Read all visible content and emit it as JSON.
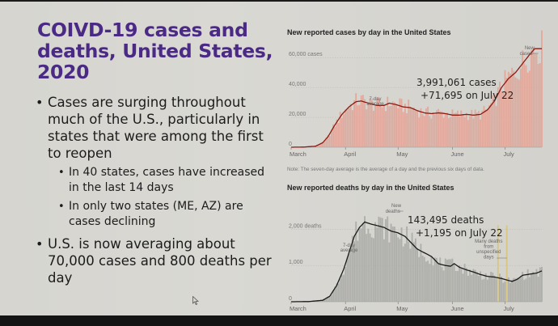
{
  "slide": {
    "title": "COIVD-19 cases and deaths, United States, 2020",
    "bullets": [
      {
        "level": 1,
        "text": "Cases are surging throughout much of the U.S., particularly in states that were among the first to reopen"
      },
      {
        "level": 2,
        "text": "In 40 states, cases have increased in the last 14 days"
      },
      {
        "level": 2,
        "text": "In only two states (ME, AZ) are cases declining"
      },
      {
        "level": 1,
        "text": "U.S. is now averaging about 70,000 cases and 800 deaths per day"
      }
    ],
    "cursor_icon": "mouse-pointer-icon",
    "title_color": "#4b2a86"
  },
  "chart_data": [
    {
      "type": "bar",
      "title": "New reported cases by day in the United States",
      "note": "Note: The seven-day average is the average of a day and the previous six days of data.",
      "xlabel": "",
      "ylabel": "",
      "x_range": [
        "March 1",
        "July 22"
      ],
      "ylim": [
        0,
        65000
      ],
      "yticks": [
        0,
        20000,
        40000,
        60000
      ],
      "ytick_labels": [
        "0",
        "20,000",
        "40,000",
        "60,000 cases"
      ],
      "month_labels": [
        "March",
        "April",
        "May",
        "June",
        "July"
      ],
      "month_start_day_index": [
        0,
        31,
        61,
        92,
        122
      ],
      "grid": true,
      "bar_color": "#e2a497",
      "line_color": "#8b1a10",
      "annotations": {
        "series_label": "New cases",
        "average_label": "7-day average",
        "total": "3,991,061 cases",
        "latest": "+71,695 on July 22"
      },
      "series": [
        {
          "name": "7-day average",
          "type": "line",
          "weekly_points": [
            {
              "day": 0,
              "value": 0
            },
            {
              "day": 7,
              "value": 100
            },
            {
              "day": 14,
              "value": 700
            },
            {
              "day": 18,
              "value": 3000
            },
            {
              "day": 21,
              "value": 7000
            },
            {
              "day": 25,
              "value": 15000
            },
            {
              "day": 29,
              "value": 22000
            },
            {
              "day": 33,
              "value": 27000
            },
            {
              "day": 37,
              "value": 30500
            },
            {
              "day": 40,
              "value": 31000
            },
            {
              "day": 44,
              "value": 29500
            },
            {
              "day": 49,
              "value": 28000
            },
            {
              "day": 53,
              "value": 28000
            },
            {
              "day": 56,
              "value": 29500
            },
            {
              "day": 60,
              "value": 28500
            },
            {
              "day": 64,
              "value": 27000
            },
            {
              "day": 68,
              "value": 26500
            },
            {
              "day": 72,
              "value": 24500
            },
            {
              "day": 76,
              "value": 23000
            },
            {
              "day": 80,
              "value": 22500
            },
            {
              "day": 84,
              "value": 23000
            },
            {
              "day": 88,
              "value": 22500
            },
            {
              "day": 92,
              "value": 21500
            },
            {
              "day": 96,
              "value": 21500
            },
            {
              "day": 100,
              "value": 22000
            },
            {
              "day": 104,
              "value": 21500
            },
            {
              "day": 108,
              "value": 22000
            },
            {
              "day": 112,
              "value": 25000
            },
            {
              "day": 116,
              "value": 31000
            },
            {
              "day": 120,
              "value": 40000
            },
            {
              "day": 124,
              "value": 46000
            },
            {
              "day": 128,
              "value": 50000
            },
            {
              "day": 132,
              "value": 56000
            },
            {
              "day": 136,
              "value": 62000
            },
            {
              "day": 139,
              "value": 66000
            },
            {
              "day": 141,
              "value": 66000
            },
            {
              "day": 143,
              "value": 66000
            }
          ]
        }
      ]
    },
    {
      "type": "bar",
      "title": "New reported deaths by day in the United States",
      "xlabel": "",
      "ylabel": "",
      "x_range": [
        "March 1",
        "July 22"
      ],
      "ylim": [
        0,
        2700
      ],
      "yticks": [
        0,
        1000,
        2000
      ],
      "ytick_labels": [
        "0",
        "1,000",
        "2,000 deaths"
      ],
      "month_labels": [
        "March",
        "April",
        "May",
        "June",
        "July"
      ],
      "month_start_day_index": [
        0,
        31,
        61,
        92,
        122
      ],
      "grid": true,
      "bar_color": "#aaaaa6",
      "highlight_bar_color": "#d8c47a",
      "line_color": "#1a1a1a",
      "annotations": {
        "series_label": "New deaths",
        "average_label": "7-day average",
        "total": "143,495 deaths",
        "latest": "+1,195 on July 22",
        "highlight_note": "Many deaths from unspecified days"
      },
      "highlighted_days": [
        118,
        123
      ],
      "series": [
        {
          "name": "7-day average",
          "type": "line",
          "weekly_points": [
            {
              "day": 0,
              "value": 0
            },
            {
              "day": 10,
              "value": 5
            },
            {
              "day": 18,
              "value": 40
            },
            {
              "day": 22,
              "value": 150
            },
            {
              "day": 26,
              "value": 450
            },
            {
              "day": 30,
              "value": 900
            },
            {
              "day": 33,
              "value": 1350
            },
            {
              "day": 36,
              "value": 1800
            },
            {
              "day": 39,
              "value": 2050
            },
            {
              "day": 42,
              "value": 2200
            },
            {
              "day": 45,
              "value": 2150
            },
            {
              "day": 49,
              "value": 2100
            },
            {
              "day": 53,
              "value": 2050
            },
            {
              "day": 57,
              "value": 1950
            },
            {
              "day": 61,
              "value": 1900
            },
            {
              "day": 65,
              "value": 1800
            },
            {
              "day": 69,
              "value": 1600
            },
            {
              "day": 72,
              "value": 1450
            },
            {
              "day": 76,
              "value": 1350
            },
            {
              "day": 80,
              "value": 1250
            },
            {
              "day": 84,
              "value": 1050
            },
            {
              "day": 88,
              "value": 1000
            },
            {
              "day": 91,
              "value": 980
            },
            {
              "day": 93,
              "value": 1050
            },
            {
              "day": 96,
              "value": 950
            },
            {
              "day": 100,
              "value": 880
            },
            {
              "day": 104,
              "value": 820
            },
            {
              "day": 108,
              "value": 750
            },
            {
              "day": 112,
              "value": 700
            },
            {
              "day": 116,
              "value": 680
            },
            {
              "day": 120,
              "value": 640
            },
            {
              "day": 123,
              "value": 600
            },
            {
              "day": 126,
              "value": 560
            },
            {
              "day": 129,
              "value": 620
            },
            {
              "day": 132,
              "value": 730
            },
            {
              "day": 136,
              "value": 760
            },
            {
              "day": 140,
              "value": 790
            },
            {
              "day": 143,
              "value": 850
            }
          ]
        }
      ]
    }
  ]
}
